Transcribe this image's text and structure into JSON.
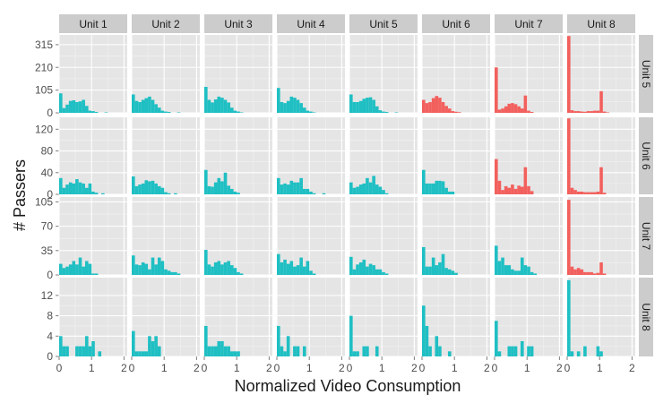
{
  "chart_data": {
    "type": "bar",
    "xlabel": "Normalized Video Consumption",
    "ylabel": "# Passers",
    "col_facets": [
      "Unit 1",
      "Unit 2",
      "Unit 3",
      "Unit 4",
      "Unit 5",
      "Unit 6",
      "Unit 7",
      "Unit 8"
    ],
    "row_facets": [
      "Unit 5",
      "Unit 6",
      "Unit 7",
      "Unit 8"
    ],
    "xlim": [
      0,
      2.1
    ],
    "x_ticks": [
      "0",
      "1",
      "2"
    ],
    "bin_width": 0.1,
    "fill_colors": {
      "default": "#1fbfc3",
      "highlight": "#f2605d"
    },
    "rows": [
      {
        "label": "Unit 5",
        "ylim": [
          0,
          360
        ],
        "y_ticks": [
          "0",
          "105",
          "210",
          "315"
        ],
        "panels": [
          {
            "fill": "default",
            "values": [
              90,
              22,
              38,
              55,
              58,
              50,
              53,
              60,
              32,
              10,
              8,
              4,
              0,
              0,
              2,
              0,
              0,
              0,
              0,
              0
            ]
          },
          {
            "fill": "default",
            "values": [
              85,
              55,
              50,
              60,
              68,
              75,
              60,
              40,
              24,
              10,
              6,
              4,
              0,
              0,
              2,
              0,
              0,
              0,
              0,
              0
            ]
          },
          {
            "fill": "default",
            "values": [
              120,
              60,
              48,
              62,
              75,
              70,
              60,
              48,
              24,
              10,
              6,
              2,
              0,
              0,
              0,
              0,
              0,
              0,
              0,
              0
            ]
          },
          {
            "fill": "default",
            "values": [
              115,
              50,
              45,
              55,
              75,
              70,
              60,
              45,
              24,
              10,
              6,
              2,
              0,
              0,
              0,
              0,
              0,
              0,
              0,
              0
            ]
          },
          {
            "fill": "default",
            "values": [
              85,
              50,
              50,
              55,
              65,
              70,
              72,
              60,
              30,
              12,
              6,
              4,
              0,
              0,
              2,
              0,
              0,
              0,
              0,
              0
            ]
          },
          {
            "fill": "highlight",
            "values": [
              60,
              45,
              50,
              68,
              78,
              70,
              50,
              32,
              20,
              8,
              5,
              3,
              0,
              0,
              0,
              0,
              0,
              0,
              0,
              0
            ]
          },
          {
            "fill": "highlight",
            "values": [
              210,
              15,
              20,
              30,
              42,
              45,
              40,
              30,
              20,
              80,
              10,
              4,
              0,
              0,
              0,
              0,
              0,
              0,
              0,
              0
            ]
          },
          {
            "fill": "highlight",
            "values": [
              355,
              12,
              8,
              8,
              6,
              5,
              8,
              8,
              10,
              10,
              100,
              6,
              2,
              0,
              0,
              0,
              0,
              0,
              0,
              0
            ]
          }
        ]
      },
      {
        "label": "Unit 6",
        "ylim": [
          0,
          142
        ],
        "y_ticks": [
          "0",
          "40",
          "80",
          "120"
        ],
        "panels": [
          {
            "fill": "default",
            "values": [
              30,
              12,
              18,
              22,
              20,
              28,
              22,
              20,
              12,
              20,
              5,
              3,
              0,
              2,
              0,
              0,
              0,
              0,
              0,
              0
            ]
          },
          {
            "fill": "default",
            "values": [
              33,
              15,
              18,
              20,
              26,
              24,
              25,
              20,
              15,
              12,
              4,
              2,
              0,
              2,
              0,
              0,
              0,
              0,
              0,
              0
            ]
          },
          {
            "fill": "default",
            "values": [
              45,
              15,
              14,
              22,
              30,
              24,
              40,
              16,
              10,
              5,
              3,
              0,
              0,
              0,
              0,
              0,
              0,
              0,
              0,
              0
            ]
          },
          {
            "fill": "default",
            "values": [
              30,
              18,
              20,
              18,
              25,
              22,
              22,
              30,
              10,
              10,
              5,
              2,
              0,
              0,
              2,
              0,
              0,
              0,
              0,
              0
            ]
          },
          {
            "fill": "default",
            "values": [
              22,
              12,
              14,
              18,
              20,
              30,
              22,
              34,
              18,
              14,
              8,
              2,
              0,
              0,
              0,
              0,
              0,
              0,
              0,
              0
            ]
          },
          {
            "fill": "default",
            "values": [
              45,
              20,
              20,
              20,
              25,
              25,
              24,
              12,
              5,
              5,
              0,
              0,
              0,
              0,
              0,
              0,
              0,
              0,
              0,
              0
            ]
          },
          {
            "fill": "highlight",
            "values": [
              65,
              25,
              8,
              15,
              12,
              18,
              10,
              16,
              14,
              50,
              15,
              6,
              0,
              0,
              0,
              0,
              0,
              0,
              0,
              0
            ]
          },
          {
            "fill": "highlight",
            "values": [
              140,
              12,
              8,
              5,
              5,
              4,
              4,
              4,
              4,
              5,
              50,
              3,
              0,
              0,
              0,
              0,
              0,
              0,
              0,
              0
            ]
          }
        ]
      },
      {
        "label": "Unit 7",
        "ylim": [
          0,
          112
        ],
        "y_ticks": [
          "0",
          "35",
          "70",
          "105"
        ],
        "panels": [
          {
            "fill": "default",
            "values": [
              16,
              10,
              12,
              15,
              20,
              15,
              25,
              12,
              20,
              16,
              2,
              2,
              0,
              0,
              0,
              0,
              0,
              0,
              0,
              0
            ]
          },
          {
            "fill": "default",
            "values": [
              28,
              15,
              14,
              18,
              16,
              8,
              25,
              15,
              25,
              20,
              8,
              6,
              4,
              4,
              2,
              0,
              0,
              0,
              0,
              0
            ]
          },
          {
            "fill": "default",
            "values": [
              36,
              15,
              12,
              18,
              20,
              15,
              18,
              20,
              14,
              10,
              4,
              2,
              0,
              0,
              0,
              0,
              0,
              0,
              0,
              0
            ]
          },
          {
            "fill": "default",
            "values": [
              30,
              18,
              22,
              16,
              20,
              12,
              14,
              25,
              12,
              20,
              6,
              2,
              0,
              0,
              0,
              0,
              0,
              0,
              0,
              0
            ]
          },
          {
            "fill": "default",
            "values": [
              26,
              8,
              15,
              18,
              22,
              12,
              16,
              14,
              8,
              8,
              4,
              2,
              0,
              0,
              0,
              0,
              0,
              0,
              0,
              0
            ]
          },
          {
            "fill": "default",
            "values": [
              40,
              12,
              12,
              25,
              14,
              18,
              30,
              10,
              8,
              6,
              3,
              0,
              0,
              0,
              0,
              0,
              0,
              0,
              0,
              0
            ]
          },
          {
            "fill": "default",
            "values": [
              42,
              20,
              25,
              14,
              14,
              8,
              6,
              6,
              25,
              14,
              12,
              4,
              2,
              0,
              0,
              0,
              0,
              0,
              0,
              0
            ]
          },
          {
            "fill": "highlight",
            "values": [
              108,
              12,
              8,
              10,
              8,
              4,
              4,
              4,
              2,
              3,
              18,
              2,
              0,
              0,
              0,
              0,
              0,
              0,
              0,
              0
            ]
          }
        ]
      },
      {
        "label": "Unit 8",
        "ylim": [
          0,
          15.5
        ],
        "y_ticks": [
          "0",
          "4",
          "8",
          "12"
        ],
        "panels": [
          {
            "fill": "default",
            "values": [
              4,
              2,
              2,
              0,
              0,
              2,
              2,
              2,
              4,
              2,
              3,
              0,
              1,
              0,
              0,
              0,
              0,
              0,
              0,
              0
            ]
          },
          {
            "fill": "default",
            "values": [
              5,
              1,
              1,
              1,
              1,
              4,
              3,
              4,
              2,
              0,
              0,
              0,
              0,
              0,
              0,
              0,
              0,
              0,
              0,
              0
            ]
          },
          {
            "fill": "default",
            "values": [
              6,
              2,
              2,
              2,
              3,
              3,
              2,
              2,
              1,
              1,
              1,
              0,
              0,
              0,
              0,
              0,
              0,
              0,
              0,
              0
            ]
          },
          {
            "fill": "default",
            "values": [
              6,
              2,
              1,
              4,
              0,
              2,
              2,
              0,
              2,
              0,
              0,
              0,
              0,
              0,
              0,
              0,
              0,
              0,
              0,
              0
            ]
          },
          {
            "fill": "default",
            "values": [
              8,
              1,
              1,
              0,
              2,
              2,
              0,
              0,
              2,
              0,
              0,
              0,
              0,
              0,
              0,
              0,
              0,
              0,
              0,
              0
            ]
          },
          {
            "fill": "default",
            "values": [
              10,
              6,
              2,
              0,
              4,
              2,
              0,
              0,
              1,
              0,
              0,
              0,
              0,
              0,
              0,
              0,
              0,
              0,
              0,
              0
            ]
          },
          {
            "fill": "default",
            "values": [
              7,
              1,
              0,
              0,
              2,
              2,
              2,
              0,
              3,
              0,
              2,
              2,
              0,
              0,
              0,
              0,
              0,
              0,
              0,
              0
            ]
          },
          {
            "fill": "default",
            "values": [
              15,
              1,
              0,
              1,
              0,
              2,
              0,
              0,
              0,
              2,
              1,
              0,
              0,
              0,
              0,
              0,
              0,
              0,
              0,
              0
            ]
          }
        ]
      }
    ]
  }
}
